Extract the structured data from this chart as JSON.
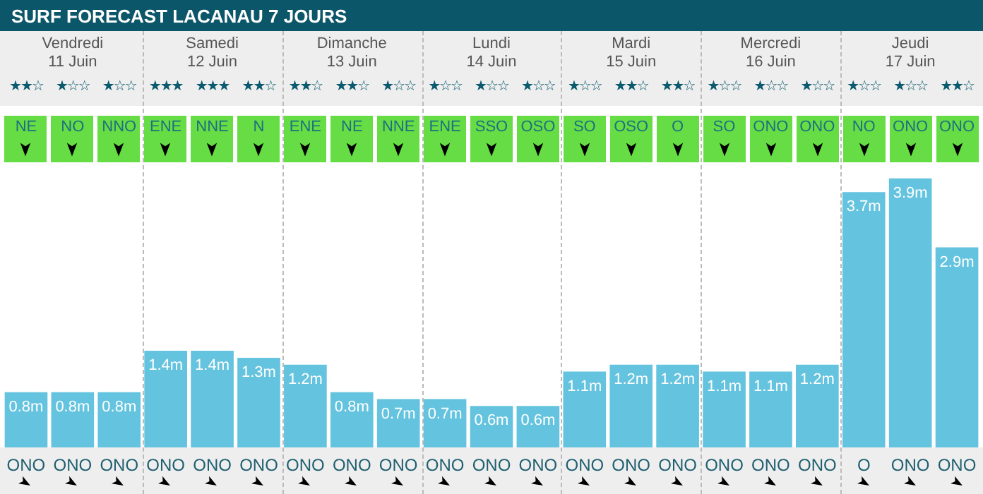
{
  "chart_data": {
    "type": "bar",
    "title": "SURF FORECAST LACANAU 7 JOURS",
    "categories": [
      "ONO",
      "ONO",
      "ONO",
      "ONO",
      "ONO",
      "ONO",
      "ONO",
      "ONO",
      "ONO",
      "ONO",
      "ONO",
      "ONO",
      "ONO",
      "ONO",
      "ONO",
      "ONO",
      "ONO",
      "ONO",
      "O",
      "ONO",
      "ONO"
    ],
    "values": [
      0.8,
      0.8,
      0.8,
      1.4,
      1.4,
      1.3,
      1.2,
      0.8,
      0.7,
      0.7,
      0.6,
      0.6,
      1.1,
      1.2,
      1.2,
      1.1,
      1.1,
      1.2,
      3.7,
      3.9,
      2.9
    ],
    "value_labels": [
      "0.8m",
      "0.8m",
      "0.8m",
      "1.4m",
      "1.4m",
      "1.3m",
      "1.2m",
      "0.8m",
      "0.7m",
      "0.7m",
      "0.6m",
      "0.6m",
      "1.1m",
      "1.2m",
      "1.2m",
      "1.1m",
      "1.1m",
      "1.2m",
      "3.7m",
      "3.9m",
      "2.9m"
    ],
    "color": "#64c3de",
    "legend": false,
    "grid": false,
    "annotations": [
      "Vendredi\n11 Juin",
      "Samedi\n12 Juin",
      "Dimanche\n13 Juin",
      "Lundi\n14 Juin",
      "Mardi\n15 Juin",
      "Mercredi\n16 Juin",
      "Jeudi\n17 Juin",
      "★★☆",
      "★☆☆",
      "★☆☆",
      "★★★",
      "★★★",
      "★★☆",
      "★★☆",
      "★★☆",
      "★☆☆",
      "★☆☆",
      "★☆☆",
      "★☆☆",
      "★☆☆",
      "★★☆",
      "★★☆",
      "★☆☆",
      "★☆☆",
      "★☆☆",
      "★☆☆",
      "★☆☆",
      "★★☆",
      "NE",
      "NO",
      "NNO",
      "ENE",
      "NNE",
      "N",
      "ENE",
      "NE",
      "NNE",
      "ENE",
      "SSO",
      "OSO",
      "SO",
      "OSO",
      "O",
      "SO",
      "ONO",
      "ONO",
      "NO",
      "ONO",
      "ONO"
    ]
  }
}
